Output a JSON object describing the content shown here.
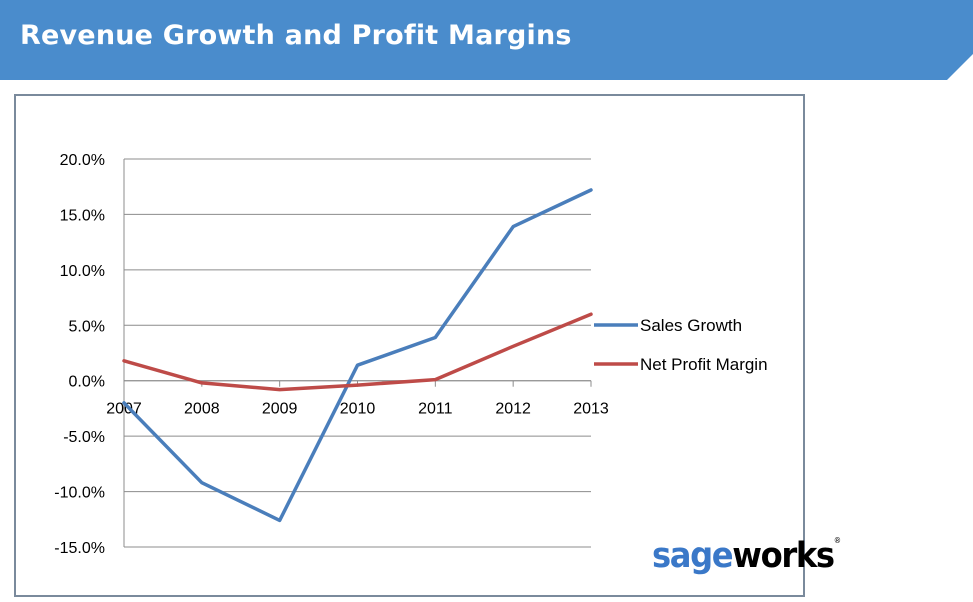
{
  "banner": {
    "title": "Revenue Growth and Profit Margins",
    "color": "#4a8ccc"
  },
  "logo": {
    "part1": "sage",
    "part2": "works",
    "mark": "®",
    "color1": "#3a78c8",
    "color2": "#000000"
  },
  "chart_data": {
    "type": "line",
    "categories": [
      "2007",
      "2008",
      "2009",
      "2010",
      "2011",
      "2012",
      "2013"
    ],
    "series": [
      {
        "name": "Sales Growth",
        "color": "#4a7ebb",
        "values": [
          -2.0,
          -9.2,
          -12.6,
          1.4,
          3.9,
          13.9,
          17.2
        ]
      },
      {
        "name": "Net Profit Margin",
        "color": "#be4b48",
        "values": [
          1.8,
          -0.2,
          -0.8,
          -0.4,
          0.1,
          3.1,
          6.0
        ]
      }
    ],
    "y_ticks": [
      "20.0%",
      "15.0%",
      "10.0%",
      "5.0%",
      "0.0%",
      "-5.0%",
      "-10.0%",
      "-15.0%"
    ],
    "ylim": [
      -15,
      20
    ],
    "grid": true,
    "legend_position": "right",
    "title": "",
    "xlabel": "",
    "ylabel": ""
  }
}
